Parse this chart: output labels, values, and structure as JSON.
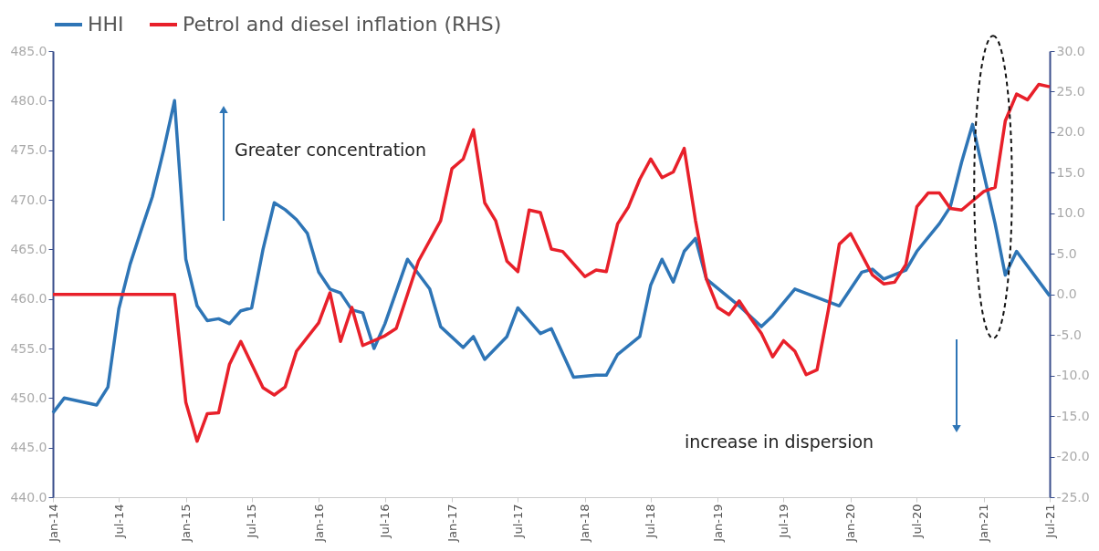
{
  "chart_data": {
    "type": "line",
    "annotations": [
      "Greater concentration",
      "increase in dispersion"
    ],
    "xlim": [
      "2014-01",
      "2021-07"
    ],
    "xticks": [
      {
        "value": "2014-01",
        "label": "Jan-14"
      },
      {
        "value": "2014-07",
        "label": "Jul-14"
      },
      {
        "value": "2015-01",
        "label": "Jan-15"
      },
      {
        "value": "2015-07",
        "label": "Jul-15"
      },
      {
        "value": "2016-01",
        "label": "Jan-16"
      },
      {
        "value": "2016-07",
        "label": "Jul-16"
      },
      {
        "value": "2017-01",
        "label": "Jan-17"
      },
      {
        "value": "2017-07",
        "label": "Jul-17"
      },
      {
        "value": "2018-01",
        "label": "Jan-18"
      },
      {
        "value": "2018-07",
        "label": "Jul-18"
      },
      {
        "value": "2019-01",
        "label": "Jan-19"
      },
      {
        "value": "2019-07",
        "label": "Jul-19"
      },
      {
        "value": "2020-01",
        "label": "Jan-20"
      },
      {
        "value": "2020-07",
        "label": "Jul-20"
      },
      {
        "value": "2021-01",
        "label": "Jan-21"
      },
      {
        "value": "2021-07",
        "label": "Jul-21"
      }
    ],
    "ylim": [
      440,
      485
    ],
    "yticks": [
      {
        "value": 440,
        "label": "440.0"
      },
      {
        "value": 445,
        "label": "445.0"
      },
      {
        "value": 450,
        "label": "450.0"
      },
      {
        "value": 455,
        "label": "455.0"
      },
      {
        "value": 460,
        "label": "460.0"
      },
      {
        "value": 465,
        "label": "465.0"
      },
      {
        "value": 470,
        "label": "470.0"
      },
      {
        "value": 475,
        "label": "475.0"
      },
      {
        "value": 480,
        "label": "480.0"
      },
      {
        "value": 485,
        "label": "485.0"
      }
    ],
    "y2lim": [
      -25,
      30
    ],
    "y2ticks": [
      {
        "value": -25,
        "label": "-25.0"
      },
      {
        "value": -20,
        "label": "-20.0"
      },
      {
        "value": -15,
        "label": "-15.0"
      },
      {
        "value": -10,
        "label": "-10.0"
      },
      {
        "value": -5,
        "label": "-5.0"
      },
      {
        "value": 0,
        "label": "0.0"
      },
      {
        "value": 5,
        "label": "5.0"
      },
      {
        "value": 10,
        "label": "10.0"
      },
      {
        "value": 15,
        "label": "15.0"
      },
      {
        "value": 20,
        "label": "20.0"
      },
      {
        "value": 25,
        "label": "25.0"
      },
      {
        "value": 30,
        "label": "30.0"
      }
    ],
    "grid": false,
    "legend": "top",
    "marker": "none",
    "line_style": "solid",
    "series": [
      {
        "name": "HHI",
        "color": "#2e75b6",
        "x": [
          "2014-01",
          "2014-02",
          "2014-05",
          "2014-06",
          "2014-07",
          "2014-08",
          "2014-09",
          "2014-10",
          "2014-11",
          "2014-12",
          "2015-01",
          "2015-02",
          "2015-03",
          "2015-04",
          "2015-05",
          "2015-06",
          "2015-07",
          "2015-08",
          "2015-09",
          "2015-10",
          "2015-11",
          "2015-12",
          "2016-01",
          "2016-02",
          "2016-03",
          "2016-04",
          "2016-05",
          "2016-06",
          "2016-07",
          "2016-09",
          "2016-11",
          "2016-12",
          "2017-02",
          "2017-03",
          "2017-04",
          "2017-06",
          "2017-07",
          "2017-09",
          "2017-10",
          "2017-12",
          "2018-02",
          "2018-03",
          "2018-04",
          "2018-06",
          "2018-07",
          "2018-08",
          "2018-09",
          "2018-10",
          "2018-11",
          "2018-12",
          "2019-03",
          "2019-05",
          "2019-06",
          "2019-08",
          "2019-12",
          "2020-02",
          "2020-03",
          "2020-04",
          "2020-06",
          "2020-07",
          "2020-09",
          "2020-10",
          "2020-11",
          "2020-12",
          "2021-02",
          "2021-03",
          "2021-04",
          "2021-07"
        ],
        "values": [
          448.5,
          450.0,
          449.3,
          451.1,
          459.0,
          463.5,
          467.0,
          470.3,
          475.0,
          480.0,
          464.0,
          459.3,
          457.8,
          458.0,
          457.5,
          458.8,
          459.1,
          465.0,
          469.7,
          469.0,
          468.0,
          466.6,
          462.7,
          461.0,
          460.6,
          458.9,
          458.6,
          455.0,
          457.5,
          464.0,
          461.0,
          457.2,
          455.1,
          456.2,
          453.9,
          456.2,
          459.1,
          456.5,
          457.0,
          452.1,
          452.3,
          452.3,
          454.4,
          456.2,
          461.4,
          464.0,
          461.7,
          464.8,
          466.1,
          462.0,
          459.3,
          457.2,
          458.3,
          461.0,
          459.3,
          462.7,
          463.0,
          462.0,
          462.9,
          464.8,
          467.6,
          469.3,
          473.8,
          477.6,
          467.6,
          462.4,
          464.8,
          460.3
        ]
      },
      {
        "name": "Petrol and diesel inflation (RHS)",
        "color": "#e8202a",
        "axis": "y2",
        "x": [
          "2014-01",
          "2014-12",
          "2015-01",
          "2015-02",
          "2015-03",
          "2015-04",
          "2015-05",
          "2015-06",
          "2015-08",
          "2015-09",
          "2015-10",
          "2015-11",
          "2016-01",
          "2016-02",
          "2016-03",
          "2016-04",
          "2016-05",
          "2016-07",
          "2016-08",
          "2016-10",
          "2016-12",
          "2017-01",
          "2017-02",
          "2017-03",
          "2017-04",
          "2017-05",
          "2017-06",
          "2017-07",
          "2017-08",
          "2017-09",
          "2017-10",
          "2017-11",
          "2018-01",
          "2018-02",
          "2018-03",
          "2018-04",
          "2018-05",
          "2018-06",
          "2018-07",
          "2018-08",
          "2018-09",
          "2018-10",
          "2018-11",
          "2018-12",
          "2019-01",
          "2019-02",
          "2019-03",
          "2019-04",
          "2019-05",
          "2019-06",
          "2019-07",
          "2019-08",
          "2019-09",
          "2019-10",
          "2019-11",
          "2019-12",
          "2020-01",
          "2020-03",
          "2020-04",
          "2020-05",
          "2020-06",
          "2020-07",
          "2020-08",
          "2020-09",
          "2020-10",
          "2020-11",
          "2021-01",
          "2021-02",
          "2021-03",
          "2021-04",
          "2021-05",
          "2021-06",
          "2021-07"
        ],
        "values": [
          0.0,
          0.0,
          -13.3,
          -18.1,
          -14.7,
          -14.6,
          -8.6,
          -5.8,
          -11.5,
          -12.4,
          -11.4,
          -7.0,
          -3.5,
          0.2,
          -5.8,
          -1.6,
          -6.3,
          -5.1,
          -4.2,
          4.1,
          9.1,
          15.5,
          16.7,
          20.3,
          11.3,
          9.1,
          4.1,
          2.8,
          10.4,
          10.1,
          5.6,
          5.3,
          2.2,
          3.0,
          2.8,
          8.7,
          10.8,
          14.2,
          16.7,
          14.4,
          15.1,
          18.0,
          9.1,
          1.9,
          -1.6,
          -2.5,
          -0.8,
          -2.9,
          -4.8,
          -7.7,
          -5.7,
          -7.0,
          -9.9,
          -9.3,
          -1.9,
          6.2,
          7.5,
          2.4,
          1.3,
          1.5,
          3.7,
          10.8,
          12.5,
          12.5,
          10.6,
          10.4,
          12.7,
          13.2,
          21.4,
          24.7,
          24.0,
          25.9,
          25.6
        ]
      }
    ]
  }
}
